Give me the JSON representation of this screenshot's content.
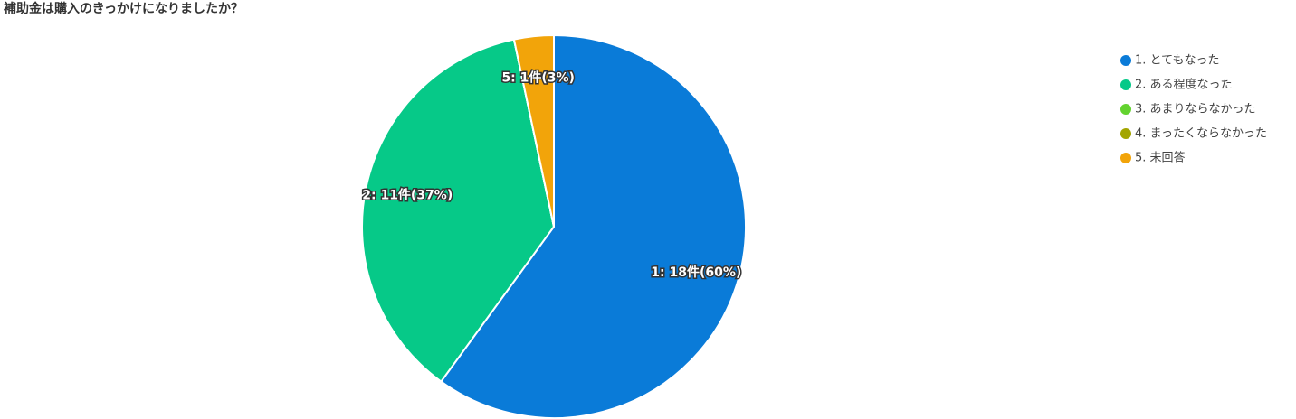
{
  "chart_data": {
    "type": "pie",
    "title": "補助金は購入のきっかけになりましたか？",
    "categories": [
      "1. とてもなった",
      "2. ある程度なった",
      "3. あまりならなかった",
      "4. まったくならなかった",
      "5. 未回答"
    ],
    "values": [
      18,
      11,
      0,
      0,
      1
    ],
    "value_labels": [
      "1: 18件(60%)",
      "2: 11件(37%)",
      null,
      null,
      "5: 1件(3%)"
    ],
    "colors": [
      "#0a7bd8",
      "#06c988",
      "#63d32f",
      "#a3a500",
      "#f2a40a"
    ],
    "legend": "right"
  }
}
